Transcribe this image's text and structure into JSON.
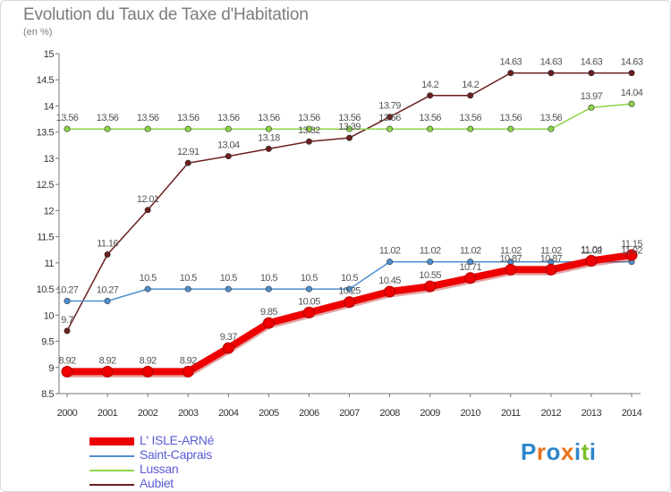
{
  "header": {
    "title": "Evolution du Taux de Taxe d'Habitation",
    "unit": "(en %)"
  },
  "logo": {
    "letters": [
      "P",
      "r",
      "o",
      "x",
      "i",
      "t",
      "i"
    ],
    "colors": [
      "#2e86c9",
      "#e8731c",
      "#2e86c9",
      "#e8731c",
      "#2e86c9",
      "#7bbf2a",
      "#2e86c9"
    ]
  },
  "chart_data": {
    "type": "line",
    "x": [
      2000,
      2001,
      2002,
      2003,
      2004,
      2005,
      2006,
      2007,
      2008,
      2009,
      2010,
      2011,
      2012,
      2013,
      2014
    ],
    "xticks": [
      "2000",
      "2001",
      "2002",
      "2003",
      "2004",
      "2005",
      "2006",
      "2007",
      "2008",
      "2009",
      "2010",
      "2011",
      "2012",
      "2013",
      "2014"
    ],
    "ylim": [
      8.5,
      15
    ],
    "yticks": [
      "8.5",
      "9",
      "9.5",
      "10",
      "10.5",
      "11",
      "11.5",
      "12",
      "12.5",
      "13",
      "13.5",
      "14",
      "14.5",
      "15"
    ],
    "grid": false,
    "legend_position": "bottom-left",
    "series": [
      {
        "name": "Aubiet",
        "color": "#6b1f1f",
        "values": [
          9.7,
          11.16,
          12.01,
          12.91,
          13.04,
          13.18,
          13.32,
          13.39,
          13.79,
          14.2,
          14.2,
          14.63,
          14.63,
          14.63,
          14.63
        ],
        "labels": [
          "9.7",
          "11.16",
          "12.01",
          "12.91",
          "13.04",
          "13.18",
          "13.32",
          "13.39",
          "13.79",
          "14.2",
          "14.2",
          "14.63",
          "14.63",
          "14.63",
          "14.63"
        ]
      },
      {
        "name": "Lussan",
        "color": "#8ed44a",
        "values": [
          13.56,
          13.56,
          13.56,
          13.56,
          13.56,
          13.56,
          13.56,
          13.56,
          13.56,
          13.56,
          13.56,
          13.56,
          13.56,
          13.97,
          14.04
        ],
        "labels": [
          "13.56",
          "13.56",
          "13.56",
          "13.56",
          "13.56",
          "13.56",
          "13.56",
          "13.56",
          "13.56",
          "13.56",
          "13.56",
          "13.56",
          "13.56",
          "13.97",
          "14.04"
        ]
      },
      {
        "name": "Saint-Caprais",
        "color": "#4f8fcf",
        "values": [
          10.27,
          10.27,
          10.5,
          10.5,
          10.5,
          10.5,
          10.5,
          10.5,
          11.02,
          11.02,
          11.02,
          11.02,
          11.02,
          11.02,
          11.02
        ],
        "labels": [
          "10.27",
          "10.27",
          "10.5",
          "10.5",
          "10.5",
          "10.5",
          "10.5",
          "10.5",
          "11.02",
          "11.02",
          "11.02",
          "11.02",
          "11.02",
          "11.02",
          "11.02"
        ]
      },
      {
        "name": "L' ISLE-ARNé",
        "color": "#ee0000",
        "values": [
          8.92,
          8.92,
          8.92,
          8.92,
          9.37,
          9.85,
          10.05,
          10.25,
          10.45,
          10.55,
          10.71,
          10.87,
          10.87,
          11.04,
          11.15
        ],
        "labels": [
          "8.92",
          "8.92",
          "8.92",
          "8.92",
          "9.37",
          "9.85",
          "10.05",
          "10.25",
          "10.45",
          "10.55",
          "10.71",
          "10.87",
          "10.87",
          "11.04",
          "11.15"
        ]
      }
    ],
    "legend": [
      "L' ISLE-ARNé",
      "Saint-Caprais",
      "Lussan",
      "Aubiet"
    ]
  }
}
